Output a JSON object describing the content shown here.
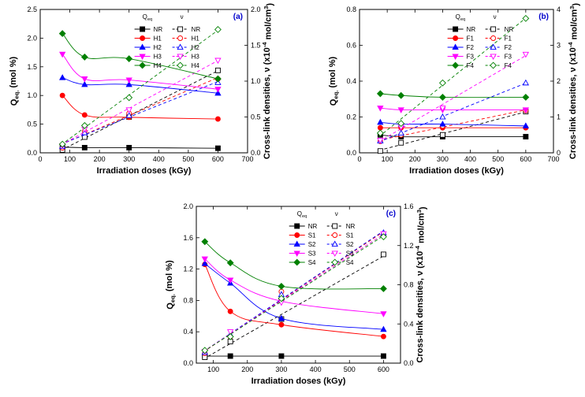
{
  "chart_data": [
    {
      "type": "line",
      "panel_label": "(a)",
      "xlabel": "Irradiation doses (kGy)",
      "ylabel_left": "Q_eq. (mol %)",
      "ylabel_right": "Cross-link densities, ν (x10^-4 mol/cm^3)",
      "xlim": [
        0,
        700
      ],
      "xticks": [
        0,
        100,
        200,
        300,
        400,
        500,
        600,
        700
      ],
      "ylim_left": [
        0,
        2.5
      ],
      "yticks_left": [
        "0.0",
        "0.5",
        "1.0",
        "1.5",
        "2.0",
        "2.5"
      ],
      "ylim_right": [
        0,
        2.0
      ],
      "yticks_right": [
        "0.0",
        "0.5",
        "1.0",
        "1.5",
        "2.0"
      ],
      "legend_header_left": "Q_eq",
      "legend_header_right": "ν",
      "x": [
        75,
        150,
        300,
        600
      ],
      "series": [
        {
          "name": "NR",
          "color": "#000000",
          "marker": "square",
          "q": [
            0.1,
            0.09,
            0.09,
            0.08
          ],
          "nu": [
            0.04,
            0.22,
            0.5,
            1.15
          ]
        },
        {
          "name": "H1",
          "color": "#ff0000",
          "marker": "circle",
          "q": [
            1.0,
            0.66,
            0.62,
            0.59
          ],
          "nu": [
            0.07,
            0.3,
            0.55,
            1.03
          ]
        },
        {
          "name": "H2",
          "color": "#0000ff",
          "marker": "triangle-up",
          "q": [
            1.31,
            1.19,
            1.19,
            1.04
          ],
          "nu": [
            0.09,
            0.28,
            0.52,
            0.98
          ]
        },
        {
          "name": "H3",
          "color": "#ff00ff",
          "marker": "triangle-down",
          "q": [
            1.72,
            1.29,
            1.27,
            1.11
          ],
          "nu": [
            0.1,
            0.33,
            0.6,
            1.29
          ]
        },
        {
          "name": "H4",
          "color": "#008000",
          "marker": "diamond",
          "q": [
            2.08,
            1.67,
            1.64,
            1.29
          ],
          "nu": [
            0.12,
            0.38,
            0.77,
            1.72
          ]
        }
      ]
    },
    {
      "type": "line",
      "panel_label": "(b)",
      "xlabel": "Irradiation doses (kGy)",
      "ylabel_left": "Q_eq. (mol %)",
      "ylabel_right": "Cross-link densities, ν (x10^-4 mol/cm^3)",
      "xlim": [
        0,
        700
      ],
      "xticks": [
        0,
        100,
        200,
        300,
        400,
        500,
        600,
        700
      ],
      "ylim_left": [
        0,
        0.8
      ],
      "yticks_left": [
        "0.0",
        "0.2",
        "0.4",
        "0.6",
        "0.8"
      ],
      "ylim_right": [
        0,
        4.0
      ],
      "yticks_right": [
        "0",
        "1",
        "2",
        "3",
        "4"
      ],
      "legend_header_left": "Q_eq",
      "legend_header_right": "ν",
      "x": [
        75,
        150,
        300,
        600
      ],
      "series": [
        {
          "name": "NR",
          "color": "#000000",
          "marker": "square",
          "q": [
            0.1,
            0.09,
            0.09,
            0.09
          ],
          "nu": [
            0.05,
            0.28,
            0.5,
            1.15
          ]
        },
        {
          "name": "F1",
          "color": "#ff0000",
          "marker": "circle",
          "q": [
            0.14,
            0.14,
            0.14,
            0.14
          ],
          "nu": [
            0.32,
            0.5,
            0.75,
            1.18
          ]
        },
        {
          "name": "F2",
          "color": "#0000ff",
          "marker": "triangle-up",
          "q": [
            0.17,
            0.16,
            0.16,
            0.15
          ],
          "nu": [
            0.33,
            0.55,
            1.0,
            1.95
          ]
        },
        {
          "name": "F3",
          "color": "#ff00ff",
          "marker": "triangle-down",
          "q": [
            0.25,
            0.24,
            0.24,
            0.24
          ],
          "nu": [
            0.35,
            0.72,
            1.25,
            2.75
          ]
        },
        {
          "name": "F4",
          "color": "#008000",
          "marker": "diamond",
          "q": [
            0.33,
            0.32,
            0.31,
            0.31
          ],
          "nu": [
            0.55,
            0.82,
            1.95,
            3.75
          ]
        }
      ]
    },
    {
      "type": "line",
      "panel_label": "(c)",
      "xlabel": "Irradiation doses (kGy)",
      "ylabel_left": "Q_eq. (mol %)",
      "ylabel_right": "Cross-link densities, ν (x10^-4 mol/cm^3)",
      "xlim": [
        50,
        650
      ],
      "xticks": [
        100,
        200,
        300,
        400,
        500,
        600
      ],
      "ylim_left": [
        0,
        2.0
      ],
      "yticks_left": [
        "0.0",
        "0.4",
        "0.8",
        "1.2",
        "1.6",
        "2.0"
      ],
      "ylim_right": [
        0,
        1.6
      ],
      "yticks_right": [
        "0.0",
        "0.4",
        "0.8",
        "1.2",
        "1.6"
      ],
      "legend_header_left": "Q_eq",
      "legend_header_right": "ν",
      "x": [
        75,
        150,
        300,
        600
      ],
      "series": [
        {
          "name": "NR",
          "color": "#000000",
          "marker": "square",
          "q": [
            0.09,
            0.09,
            0.09,
            0.09
          ],
          "nu": [
            0.06,
            0.22,
            0.45,
            1.11
          ]
        },
        {
          "name": "S1",
          "color": "#ff0000",
          "marker": "circle",
          "q": [
            1.26,
            0.66,
            0.49,
            0.34
          ],
          "nu": [
            0.1,
            0.27,
            0.73,
            1.31
          ]
        },
        {
          "name": "S2",
          "color": "#0000ff",
          "marker": "triangle-up",
          "q": [
            1.27,
            1.02,
            0.57,
            0.43
          ],
          "nu": [
            0.11,
            0.29,
            0.7,
            1.33
          ]
        },
        {
          "name": "S3",
          "color": "#ff00ff",
          "marker": "triangle-down",
          "q": [
            1.33,
            1.06,
            0.79,
            0.63
          ],
          "nu": [
            0.12,
            0.32,
            0.62,
            1.32
          ]
        },
        {
          "name": "S4",
          "color": "#008000",
          "marker": "diamond",
          "q": [
            1.55,
            1.28,
            0.98,
            0.95
          ],
          "nu": [
            0.13,
            0.27,
            0.66,
            1.29
          ]
        }
      ]
    }
  ]
}
